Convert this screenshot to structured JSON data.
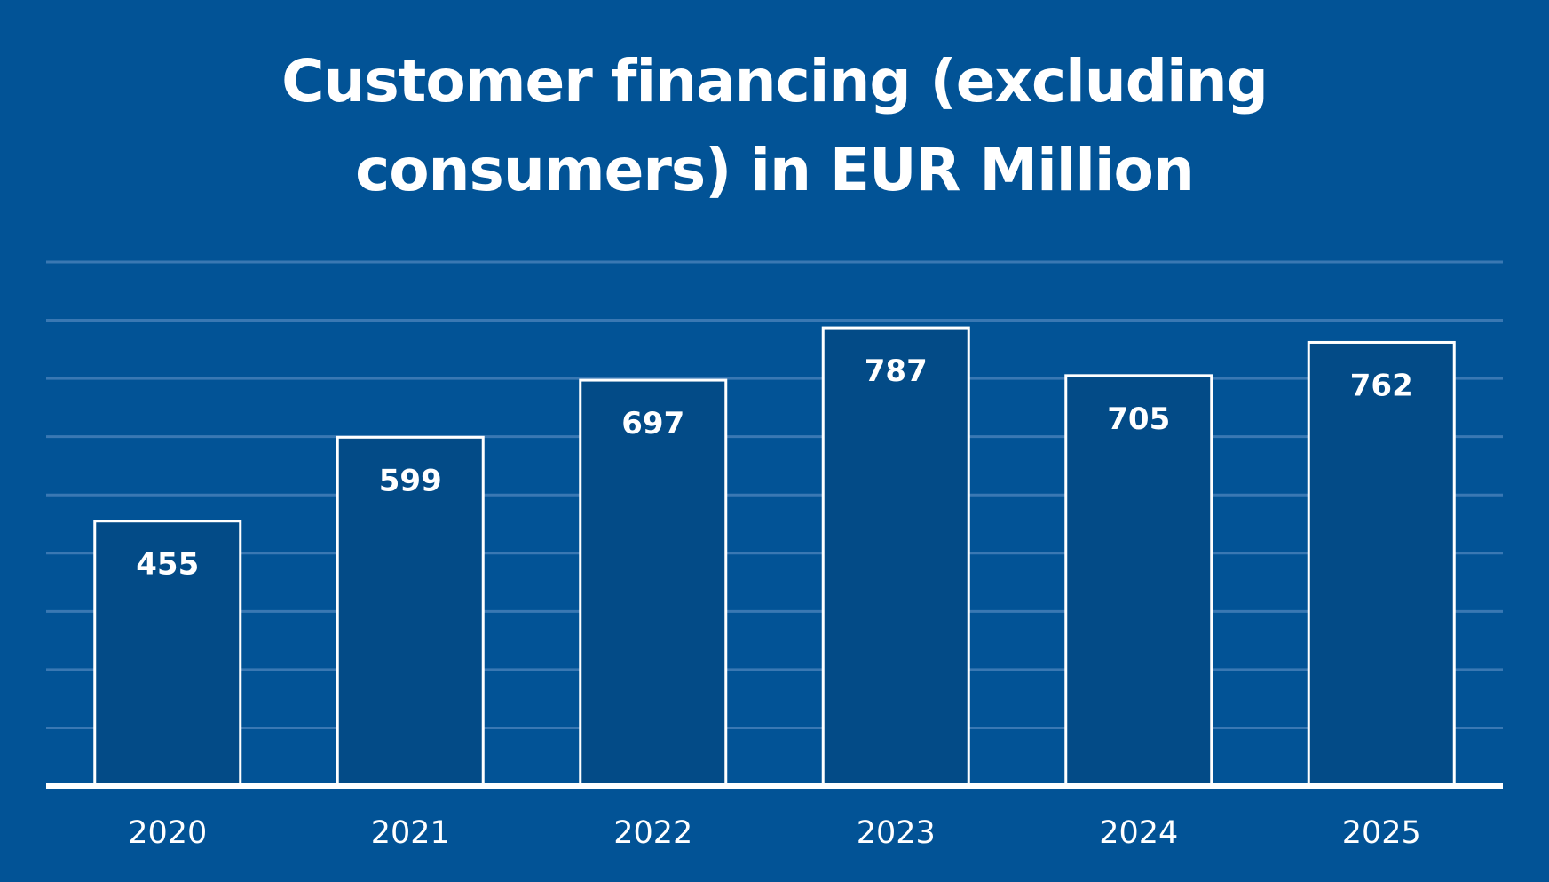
{
  "chart_data": {
    "type": "bar",
    "title_lines": [
      "Customer financing (excluding",
      "consumers) in EUR Million"
    ],
    "categories": [
      "2020",
      "2021",
      "2022",
      "2023",
      "2024",
      "2025"
    ],
    "values": [
      455,
      599,
      697,
      787,
      705,
      762
    ],
    "data_labels": [
      "455",
      "599",
      "697",
      "787",
      "705",
      "762"
    ],
    "xlabel": "",
    "ylabel": "",
    "ylim": [
      0,
      900
    ],
    "y_gridline_step": 100,
    "grid": true,
    "legend": "none",
    "y_axis_labels_visible": false,
    "colors": {
      "background": "#025396",
      "bar_fill": "#034B87",
      "bar_outline": "#ffffff",
      "gridline": "#3A78B3",
      "baseline": "#ffffff",
      "text": "#ffffff"
    }
  }
}
